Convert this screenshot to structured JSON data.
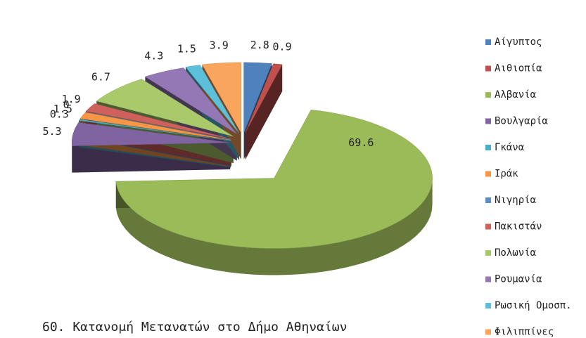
{
  "chart_data": {
    "type": "pie",
    "title": "60. Κατανομή Μετανατών στο Δήμο Αθηναίων",
    "categories": [
      "Αίγυπτος",
      "Αιθιοπία",
      "Αλβανία",
      "Βουλγαρία",
      "Γκάνα",
      "Ιράκ",
      "Νιγηρία",
      "Πακιστάν",
      "Πολωνία",
      "Ρουμανία",
      "Ρωσική Ομοσπ.",
      "Φιλιππίνες"
    ],
    "values": [
      2.8,
      0.9,
      69.6,
      5.3,
      0.3,
      1.5,
      0,
      1.9,
      6.7,
      4.3,
      1.5,
      3.9
    ],
    "colors": [
      "#4f81bd",
      "#c0504d",
      "#9bbb59",
      "#8064a2",
      "#4bacc6",
      "#f79646",
      "#5b8cc8",
      "#d0605c",
      "#a9c96a",
      "#9478b5",
      "#5cc0da",
      "#f9a55e"
    ],
    "legend": "right"
  }
}
